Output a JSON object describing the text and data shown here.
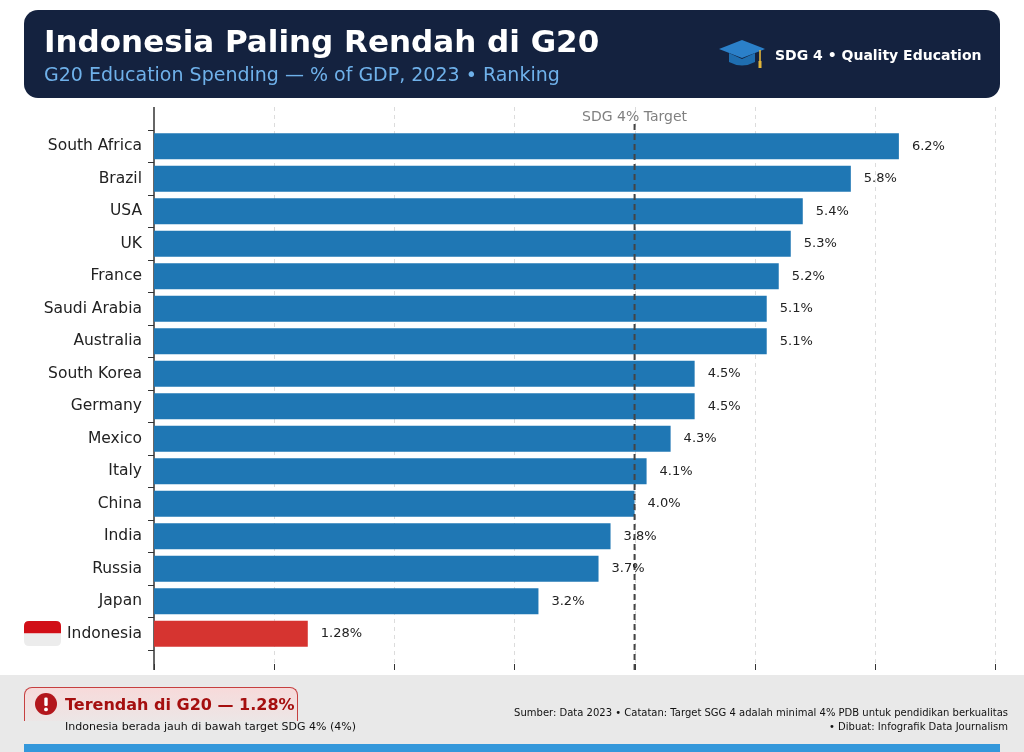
{
  "chart_data": {
    "type": "bar",
    "orientation": "horizontal",
    "title": "Indonesia Paling Rendah di G20",
    "subtitle": "G20 Education Spending — % of GDP, 2023 • Ranking",
    "categories": [
      "South Africa",
      "Brazil",
      "USA",
      "UK",
      "France",
      "Saudi Arabia",
      "Australia",
      "South Korea",
      "Germany",
      "Mexico",
      "Italy",
      "China",
      "India",
      "Russia",
      "Japan",
      "Indonesia"
    ],
    "values": [
      6.2,
      5.8,
      5.4,
      5.3,
      5.2,
      5.1,
      5.1,
      4.5,
      4.5,
      4.3,
      4.1,
      4.0,
      3.8,
      3.7,
      3.2,
      1.28
    ],
    "colors": [
      "#1f77b4",
      "#1f77b4",
      "#1f77b4",
      "#1f77b4",
      "#1f77b4",
      "#1f77b4",
      "#1f77b4",
      "#1f77b4",
      "#1f77b4",
      "#1f77b4",
      "#1f77b4",
      "#1f77b4",
      "#1f77b4",
      "#1f77b4",
      "#1f77b4",
      "#d63430"
    ],
    "value_labels": [
      "6.2%",
      "5.8%",
      "5.4%",
      "5.3%",
      "5.2%",
      "5.1%",
      "5.1%",
      "4.5%",
      "4.5%",
      "4.3%",
      "4.1%",
      "4.0%",
      "3.8%",
      "3.7%",
      "3.2%",
      "1.28%"
    ],
    "xlim": [
      0,
      7
    ],
    "xticks": [
      {
        "value": 0,
        "label": null
      },
      {
        "value": 1,
        "label": null
      },
      {
        "value": 2,
        "label": null
      },
      {
        "value": 3,
        "label": null
      },
      {
        "value": 4,
        "label": null
      },
      {
        "value": 5,
        "label": null
      },
      {
        "value": 6,
        "label": null
      },
      {
        "value": 7,
        "label": null
      }
    ],
    "tick_labels": "y",
    "grid": "x",
    "ref_lines": [
      {
        "axis": "x",
        "value": 4,
        "label": "SDG 4% Target",
        "color": "#444444",
        "line_style": "dashed"
      }
    ],
    "annotations": [
      "SDG 4 • Quality Education",
      "Terendah di G20 — 1.28%",
      "Indonesia berada jauh di bawah target SDG 4% (4%)",
      "Sumber: Data 2023 • Catatan: Target SGG 4 adalah minimal 4% PDB untuk pendidikan berkualitas • Dibuat: Infografik Data Journalism"
    ]
  }
}
